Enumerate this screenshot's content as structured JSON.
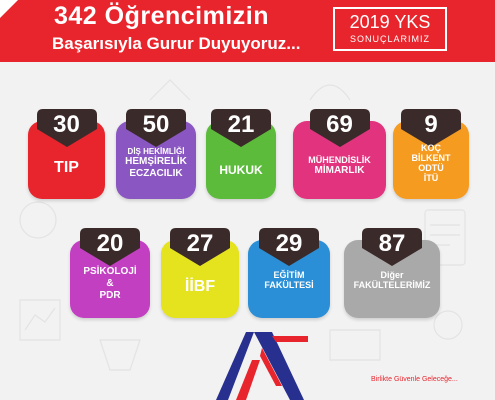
{
  "header": {
    "title": "342 Öğrencimizin",
    "subtitle": "Başarısıyla Gurur Duyuyoruz...",
    "year": "2019 YKS",
    "year_sub": "SONUÇLARIMIZ"
  },
  "colors": {
    "banner": "#e8252d",
    "badge": "#3a2a2a"
  },
  "cards": [
    {
      "count": "30",
      "lines": [
        "TIP"
      ],
      "color": "#e8252d"
    },
    {
      "count": "50",
      "lines": [
        "DİŞ HEKİMLİĞİ",
        "HEMŞİRELİK",
        "ECZACILIK"
      ],
      "color": "#8a56c2"
    },
    {
      "count": "21",
      "lines": [
        "HUKUK"
      ],
      "color": "#5dbb3c"
    },
    {
      "count": "69",
      "lines": [
        "MÜHENDİSLİK",
        "MİMARLIK"
      ],
      "color": "#e2347e"
    },
    {
      "count": "9",
      "lines": [
        "KOÇ",
        "BİLKENT",
        "ODTÜ",
        "İTÜ"
      ],
      "color": "#f59b20"
    },
    {
      "count": "20",
      "lines": [
        "PSİKOLOJİ",
        "&",
        "PDR"
      ],
      "color": "#c23fc2"
    },
    {
      "count": "27",
      "lines": [
        "İİBF"
      ],
      "color": "#e5e21e"
    },
    {
      "count": "29",
      "lines": [
        "EĞİTİM",
        "FAKÜLTESİ"
      ],
      "color": "#2a8fd6"
    },
    {
      "count": "87",
      "lines": [
        "Diğer",
        "FAKÜLTELERİMİZ"
      ],
      "color": "#a9a9a9"
    }
  ],
  "footer": {
    "logo_name": "logo-mark",
    "slogan": "Birlikte Güvenle Geleceğe..."
  }
}
